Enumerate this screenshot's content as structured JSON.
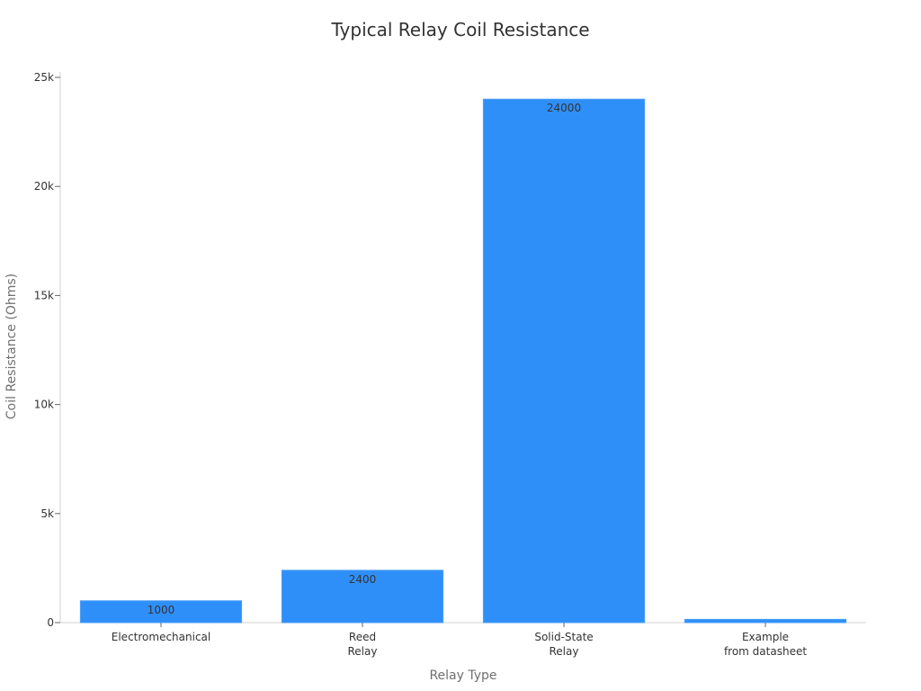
{
  "chart_data": {
    "type": "bar",
    "title": "Typical Relay Coil Resistance",
    "xlabel": "Relay Type",
    "ylabel": "Coil Resistance (Ohms)",
    "categories": [
      [
        "Electromechanical"
      ],
      [
        "Reed",
        "Relay"
      ],
      [
        "Solid-State",
        "Relay"
      ],
      [
        "Example",
        "from datasheet"
      ]
    ],
    "values": [
      1000,
      2400,
      24000,
      150
    ],
    "data_labels": [
      "1000",
      "2400",
      "24000",
      ""
    ],
    "ylim": [
      0,
      25000
    ],
    "yticks": [
      0,
      5000,
      10000,
      15000,
      20000,
      25000
    ],
    "ytick_labels": [
      "0",
      "5k",
      "10k",
      "15k",
      "20k",
      "25k"
    ],
    "grid": false,
    "legend": "none",
    "colors": {
      "bar": "#2f8ff8",
      "bar_edge": "#4a9ef9"
    }
  }
}
